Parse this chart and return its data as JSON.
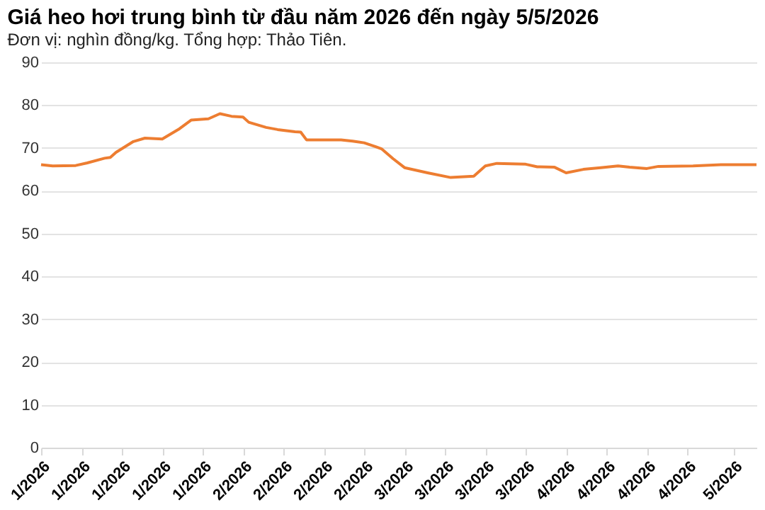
{
  "chart_data": {
    "type": "line",
    "title": "Giá heo hơi trung bình từ đầu năm 2026 đến ngày 5/5/2026",
    "subtitle": "Đơn vị: nghìn đồng/kg. Tổng hợp: Thảo Tiên.",
    "x": [
      "2026-01-01",
      "2026-01-03",
      "2026-01-07",
      "2026-01-09",
      "2026-01-12",
      "2026-01-13",
      "2026-01-14",
      "2026-01-17",
      "2026-01-19",
      "2026-01-22",
      "2026-01-25",
      "2026-01-27",
      "2026-01-30",
      "2026-02-01",
      "2026-02-03",
      "2026-02-05",
      "2026-02-06",
      "2026-02-09",
      "2026-02-11",
      "2026-02-14",
      "2026-02-15",
      "2026-02-16",
      "2026-02-22",
      "2026-02-24",
      "2026-02-26",
      "2026-02-28",
      "2026-03-01",
      "2026-03-03",
      "2026-03-05",
      "2026-03-09",
      "2026-03-13",
      "2026-03-17",
      "2026-03-19",
      "2026-03-21",
      "2026-03-26",
      "2026-03-28",
      "2026-03-31",
      "2026-04-02",
      "2026-04-05",
      "2026-04-08",
      "2026-04-11",
      "2026-04-13",
      "2026-04-16",
      "2026-04-18",
      "2026-04-24",
      "2026-04-29",
      "2026-05-05"
    ],
    "series": [
      {
        "color": "#ed7d31",
        "values": [
          66.1,
          65.8,
          65.9,
          66.5,
          67.6,
          67.8,
          69,
          71.5,
          72.3,
          72.1,
          74.5,
          76.5,
          76.8,
          78,
          77.4,
          77.2,
          76,
          74.8,
          74.3,
          73.8,
          73.7,
          71.9,
          71.9,
          71.6,
          71.2,
          70.3,
          69.8,
          67.5,
          65.4,
          64.2,
          63.1,
          63.4,
          65.8,
          66.4,
          66.2,
          65.6,
          65.5,
          64.2,
          65,
          65.4,
          65.8,
          65.5,
          65.2,
          65.7,
          65.8,
          66.1,
          66.1
        ]
      }
    ],
    "xlim": [
      "2026-01-01",
      "2026-05-05"
    ],
    "xticks": [
      {
        "value": "2026-01-01",
        "label": "1/2026"
      },
      {
        "value": "2026-01-08",
        "label": "1/2026"
      },
      {
        "value": "2026-01-15",
        "label": "1/2026"
      },
      {
        "value": "2026-01-22",
        "label": "1/2026"
      },
      {
        "value": "2026-01-29",
        "label": "1/2026"
      },
      {
        "value": "2026-02-05",
        "label": "2/2026"
      },
      {
        "value": "2026-02-12",
        "label": "2/2026"
      },
      {
        "value": "2026-02-19",
        "label": "2/2026"
      },
      {
        "value": "2026-02-26",
        "label": "2/2026"
      },
      {
        "value": "2026-03-05",
        "label": "3/2026"
      },
      {
        "value": "2026-03-12",
        "label": "3/2026"
      },
      {
        "value": "2026-03-19",
        "label": "3/2026"
      },
      {
        "value": "2026-03-26",
        "label": "3/2026"
      },
      {
        "value": "2026-04-02",
        "label": "4/2026"
      },
      {
        "value": "2026-04-09",
        "label": "4/2026"
      },
      {
        "value": "2026-04-16",
        "label": "4/2026"
      },
      {
        "value": "2026-04-23",
        "label": "4/2026"
      },
      {
        "value": "2026-05-01",
        "label": "5/2026"
      }
    ],
    "ylim": [
      0,
      90
    ],
    "yticks": [
      0,
      10,
      20,
      30,
      40,
      50,
      60,
      70,
      80,
      90
    ],
    "grid": "y",
    "legend": false,
    "marker": "none",
    "line_style": "solid"
  }
}
